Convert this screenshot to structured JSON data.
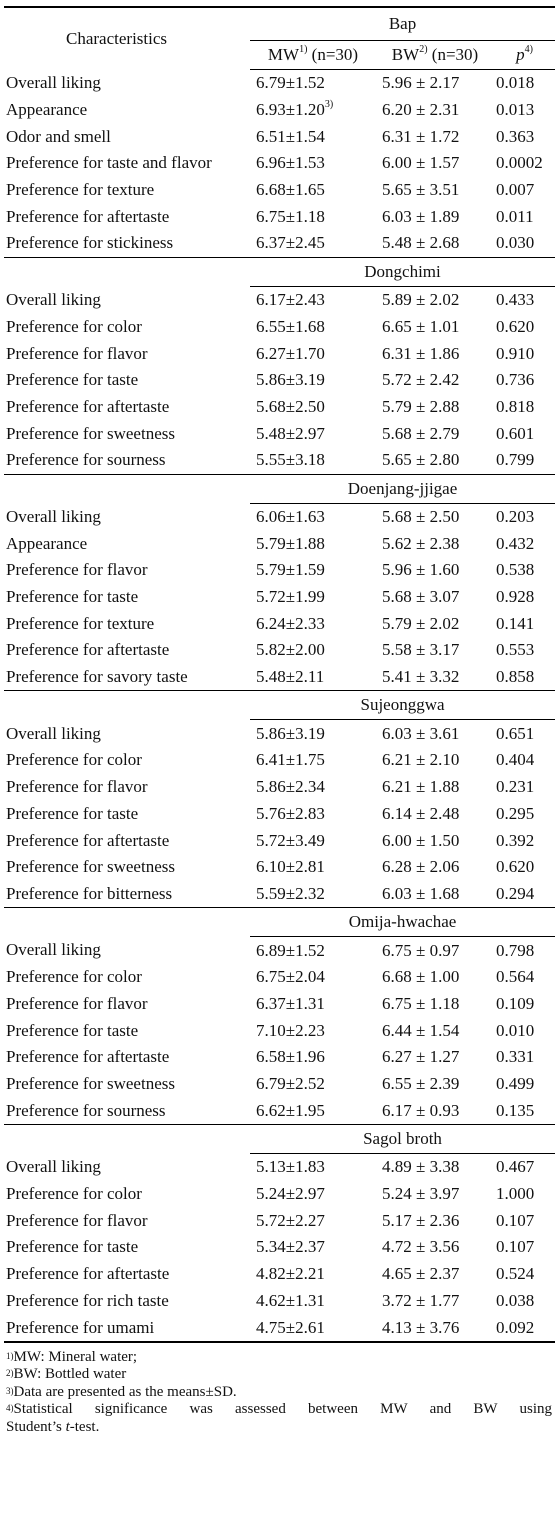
{
  "header": {
    "characteristics": "Characteristics",
    "first_section": "Bap",
    "mw_label": "MW",
    "mw_sup": "1)",
    "mw_n": " (n=30)",
    "bw_label": "BW",
    "bw_sup": "2)",
    "bw_n": " (n=30)",
    "p_label": "p",
    "p_sup": "4)"
  },
  "sections": [
    {
      "name": "Bap",
      "rows": [
        {
          "label": "Overall liking",
          "mw": "6.79±1.52",
          "bw": "5.96 ± 2.17",
          "p": "0.018"
        },
        {
          "label": "Appearance",
          "mw": "6.93±1.20",
          "mw_sup": "3)",
          "bw": "6.20 ± 2.31",
          "p": "0.013"
        },
        {
          "label": "Odor and smell",
          "mw": "6.51±1.54",
          "bw": "6.31 ± 1.72",
          "p": "0.363"
        },
        {
          "label": "Preference for taste and flavor",
          "mw": "6.96±1.53",
          "bw": "6.00 ± 1.57",
          "p": "0.0002"
        },
        {
          "label": "Preference for texture",
          "mw": "6.68±1.65",
          "bw": "5.65 ± 3.51",
          "p": "0.007"
        },
        {
          "label": "Preference for aftertaste",
          "mw": "6.75±1.18",
          "bw": "6.03 ± 1.89",
          "p": "0.011"
        },
        {
          "label": "Preference for stickiness",
          "mw": "6.37±2.45",
          "bw": "5.48 ± 2.68",
          "p": "0.030"
        }
      ]
    },
    {
      "name": "Dongchimi",
      "rows": [
        {
          "label": "Overall liking",
          "mw": "6.17±2.43",
          "bw": "5.89 ± 2.02",
          "p": "0.433"
        },
        {
          "label": "Preference for color",
          "mw": "6.55±1.68",
          "bw": "6.65 ± 1.01",
          "p": "0.620"
        },
        {
          "label": "Preference for flavor",
          "mw": "6.27±1.70",
          "bw": "6.31 ± 1.86",
          "p": "0.910"
        },
        {
          "label": "Preference for taste",
          "mw": "5.86±3.19",
          "bw": "5.72 ± 2.42",
          "p": "0.736"
        },
        {
          "label": "Preference for aftertaste",
          "mw": "5.68±2.50",
          "bw": "5.79 ± 2.88",
          "p": "0.818"
        },
        {
          "label": "Preference for sweetness",
          "mw": "5.48±2.97",
          "bw": "5.68 ± 2.79",
          "p": "0.601"
        },
        {
          "label": "Preference for sourness",
          "mw": "5.55±3.18",
          "bw": "5.65 ± 2.80",
          "p": "0.799"
        }
      ]
    },
    {
      "name": "Doenjang-jjigae",
      "rows": [
        {
          "label": "Overall liking",
          "mw": "6.06±1.63",
          "bw": "5.68 ± 2.50",
          "p": "0.203"
        },
        {
          "label": "Appearance",
          "mw": "5.79±1.88",
          "bw": "5.62 ± 2.38",
          "p": "0.432"
        },
        {
          "label": "Preference for flavor",
          "mw": "5.79±1.59",
          "bw": "5.96 ± 1.60",
          "p": "0.538"
        },
        {
          "label": "Preference for taste",
          "mw": "5.72±1.99",
          "bw": "5.68 ± 3.07",
          "p": "0.928"
        },
        {
          "label": "Preference for texture",
          "mw": "6.24±2.33",
          "bw": "5.79 ± 2.02",
          "p": "0.141"
        },
        {
          "label": "Preference for aftertaste",
          "mw": "5.82±2.00",
          "bw": "5.58 ± 3.17",
          "p": "0.553"
        },
        {
          "label": "Preference for savory taste",
          "mw": "5.48±2.11",
          "bw": "5.41 ± 3.32",
          "p": "0.858"
        }
      ]
    },
    {
      "name": "Sujeonggwa",
      "rows": [
        {
          "label": "Overall liking",
          "mw": "5.86±3.19",
          "bw": "6.03 ± 3.61",
          "p": "0.651"
        },
        {
          "label": "Preference for color",
          "mw": "6.41±1.75",
          "bw": "6.21 ± 2.10",
          "p": "0.404"
        },
        {
          "label": "Preference for flavor",
          "mw": "5.86±2.34",
          "bw": "6.21 ± 1.88",
          "p": "0.231"
        },
        {
          "label": "Preference for taste",
          "mw": "5.76±2.83",
          "bw": "6.14 ± 2.48",
          "p": "0.295"
        },
        {
          "label": "Preference for aftertaste",
          "mw": "5.72±3.49",
          "bw": "6.00 ± 1.50",
          "p": "0.392"
        },
        {
          "label": "Preference for sweetness",
          "mw": "6.10±2.81",
          "bw": "6.28 ± 2.06",
          "p": "0.620"
        },
        {
          "label": "Preference for bitterness",
          "mw": "5.59±2.32",
          "bw": "6.03 ± 1.68",
          "p": "0.294"
        }
      ]
    },
    {
      "name": "Omija-hwachae",
      "rows": [
        {
          "label": "Overall liking",
          "mw": "6.89±1.52",
          "bw": "6.75 ± 0.97",
          "p": "0.798"
        },
        {
          "label": "Preference for color",
          "mw": "6.75±2.04",
          "bw": "6.68 ± 1.00",
          "p": "0.564"
        },
        {
          "label": "Preference for flavor",
          "mw": "6.37±1.31",
          "bw": "6.75 ± 1.18",
          "p": "0.109"
        },
        {
          "label": "Preference for taste",
          "mw": "7.10±2.23",
          "bw": "6.44 ± 1.54",
          "p": "0.010"
        },
        {
          "label": "Preference for aftertaste",
          "mw": "6.58±1.96",
          "bw": "6.27 ± 1.27",
          "p": "0.331"
        },
        {
          "label": "Preference for sweetness",
          "mw": "6.79±2.52",
          "bw": "6.55 ± 2.39",
          "p": "0.499"
        },
        {
          "label": "Preference for sourness",
          "mw": "6.62±1.95",
          "bw": "6.17 ± 0.93",
          "p": "0.135"
        }
      ]
    },
    {
      "name": "Sagol broth",
      "rows": [
        {
          "label": "Overall liking",
          "mw": "5.13±1.83",
          "bw": "4.89 ± 3.38",
          "p": "0.467"
        },
        {
          "label": "Preference for color",
          "mw": "5.24±2.97",
          "bw": "5.24 ± 3.97",
          "p": "1.000"
        },
        {
          "label": "Preference for flavor",
          "mw": "5.72±2.27",
          "bw": "5.17 ± 2.36",
          "p": "0.107"
        },
        {
          "label": "Preference for taste",
          "mw": "5.34±2.37",
          "bw": "4.72 ± 3.56",
          "p": "0.107"
        },
        {
          "label": "Preference for aftertaste",
          "mw": "4.82±2.21",
          "bw": "4.65 ± 2.37",
          "p": "0.524"
        },
        {
          "label": "Preference for rich taste",
          "mw": "4.62±1.31",
          "bw": "3.72 ± 1.77",
          "p": "0.038"
        },
        {
          "label": "Preference for umami",
          "mw": "4.75±2.61",
          "bw": "4.13 ± 3.76",
          "p": "0.092"
        }
      ]
    }
  ],
  "footnotes": [
    {
      "mark": "1)",
      "text": "MW: Mineral water;"
    },
    {
      "mark": "2)",
      "text": "BW: Bottled water"
    },
    {
      "mark": "3)",
      "text": "Data are presented as the means±SD."
    },
    {
      "mark": "4)",
      "text_line1": "Statistical significance was assessed between MW and BW using",
      "text_line2_pre": "Student’s ",
      "text_line2_it": "t",
      "text_line2_post": "-test."
    }
  ]
}
